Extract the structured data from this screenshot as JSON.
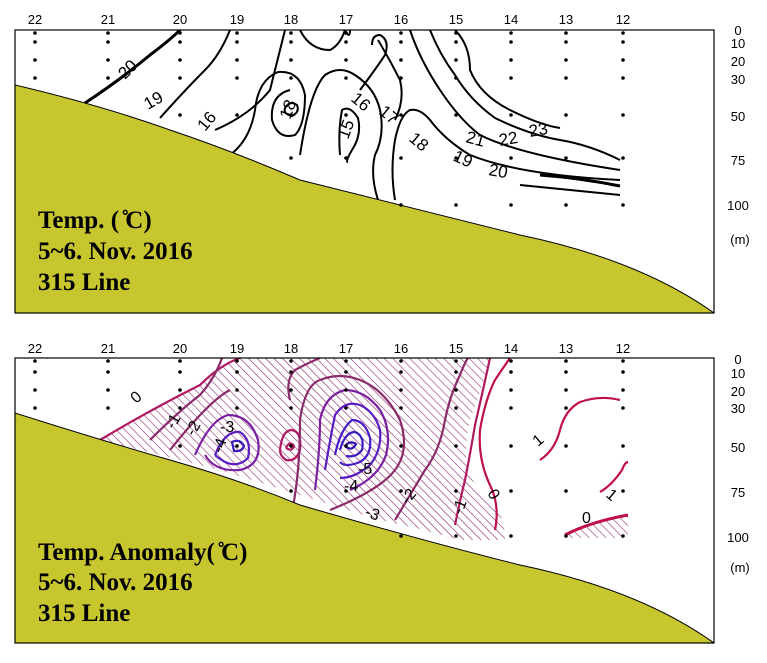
{
  "chart_data": [
    {
      "type": "contour",
      "title": [
        "Temp. ( ̊C)",
        "5~6. Nov. 2016",
        "315 Line"
      ],
      "stations": [
        "22",
        "21",
        "20",
        "19",
        "18",
        "17",
        "16",
        "15",
        "14",
        "13",
        "12"
      ],
      "depth_labels": [
        "0",
        "10",
        "20",
        "30",
        "50",
        "75",
        "100",
        "(m)"
      ],
      "contour_labels": [
        "20",
        "19",
        "16",
        "18",
        "16",
        "17",
        "15",
        "18",
        "19",
        "20",
        "21",
        "22",
        "23"
      ],
      "colors": {
        "seabed": "#c8c62e",
        "contour": "#000000"
      }
    },
    {
      "type": "contour",
      "title": [
        "Temp. Anomaly( ̊C)",
        "5~6. Nov. 2016",
        "315 Line"
      ],
      "stations": [
        "22",
        "21",
        "20",
        "19",
        "18",
        "17",
        "16",
        "15",
        "14",
        "13",
        "12"
      ],
      "depth_labels": [
        "0",
        "10",
        "20",
        "30",
        "50",
        "75",
        "100",
        "(m)"
      ],
      "contour_labels": [
        "0",
        "-1",
        "-2",
        "-3",
        "-4",
        "-5",
        "-4",
        "-3",
        "-2",
        "-1",
        "0",
        "1",
        "1",
        "0"
      ],
      "colors": {
        "seabed": "#c8c62e",
        "negative_hatch": "#8b2a6a",
        "positive": "#c0104a",
        "strong_negative": "#3a1cc0"
      }
    }
  ]
}
